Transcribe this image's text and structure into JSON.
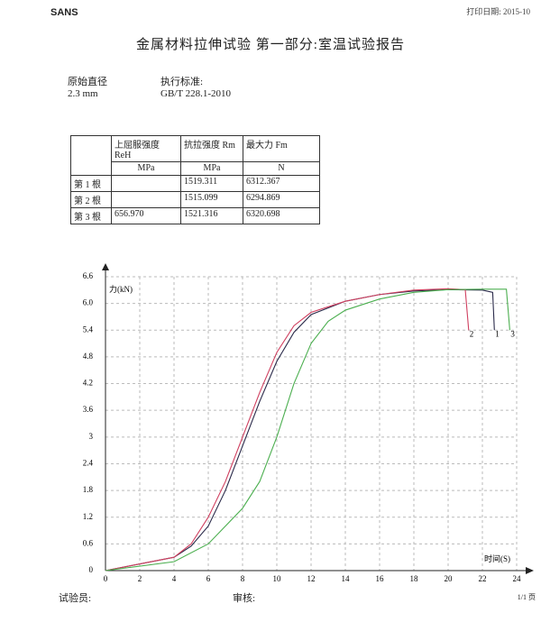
{
  "header": {
    "brand": "SANS",
    "print_date": "打印日期: 2015-10",
    "title": "金属材料拉伸试验 第一部分:室温试验报告"
  },
  "info": {
    "diameter_label": "原始直径",
    "diameter": "2.3 mm",
    "standard_label": "执行标准:",
    "standard": "GB/T 228.1-2010"
  },
  "table": {
    "columns": [
      "上屈服强度 ReH",
      "抗拉强度 Rm",
      "最大力 Fm"
    ],
    "units": [
      "MPa",
      "MPa",
      "N"
    ],
    "rows": [
      {
        "label": "第 1 根",
        "values": [
          null,
          "1519.311",
          "6312.367"
        ]
      },
      {
        "label": "第 2 根",
        "values": [
          null,
          "1515.099",
          "6294.869"
        ]
      },
      {
        "label": "第 3 根",
        "values": [
          "656.970",
          "1521.316",
          "6320.698"
        ]
      }
    ]
  },
  "chart_data": {
    "type": "line",
    "y_label": "力(kN)",
    "x_label": "时间(S)",
    "xlim": [
      0,
      24
    ],
    "ylim": [
      0,
      6.6
    ],
    "xticks": [
      0,
      2,
      4,
      6,
      8,
      10,
      12,
      14,
      16,
      18,
      20,
      22,
      24
    ],
    "yticks": [
      0,
      0.6,
      1.2,
      1.8,
      2.4,
      3,
      3.6,
      4.2,
      4.8,
      5.4,
      {
        "value": 6,
        "label": "6.0"
      },
      6.6
    ],
    "grid": true,
    "series": [
      {
        "name": "1",
        "color": "#2a2a4a",
        "x": [
          0,
          4,
          5,
          6,
          7,
          8,
          9,
          10,
          11,
          12,
          14,
          16,
          18,
          20,
          22,
          22.6,
          22.7
        ],
        "values": [
          0,
          0.3,
          0.55,
          1.0,
          1.8,
          2.8,
          3.8,
          4.7,
          5.35,
          5.75,
          6.05,
          6.2,
          6.28,
          6.31,
          6.3,
          6.25,
          5.4
        ]
      },
      {
        "name": "2",
        "color": "#d04060",
        "x": [
          0,
          4,
          5,
          6,
          7,
          8,
          9,
          10,
          11,
          12,
          14,
          16,
          18,
          20,
          21,
          21.2
        ],
        "values": [
          0,
          0.3,
          0.6,
          1.2,
          2.0,
          3.0,
          4.0,
          4.9,
          5.5,
          5.8,
          6.05,
          6.2,
          6.3,
          6.33,
          6.31,
          5.4
        ]
      },
      {
        "name": "3",
        "color": "#4caf50",
        "x": [
          0,
          4,
          6,
          8,
          9,
          10,
          11,
          12,
          13,
          14,
          16,
          18,
          20,
          22,
          23.4,
          23.6
        ],
        "values": [
          0,
          0.2,
          0.6,
          1.4,
          2.0,
          3.0,
          4.2,
          5.1,
          5.6,
          5.85,
          6.1,
          6.25,
          6.31,
          6.32,
          6.32,
          5.4
        ]
      }
    ]
  },
  "footer": {
    "tester": "试验员:",
    "reviewer": "审核:",
    "page": "1/1 页"
  }
}
